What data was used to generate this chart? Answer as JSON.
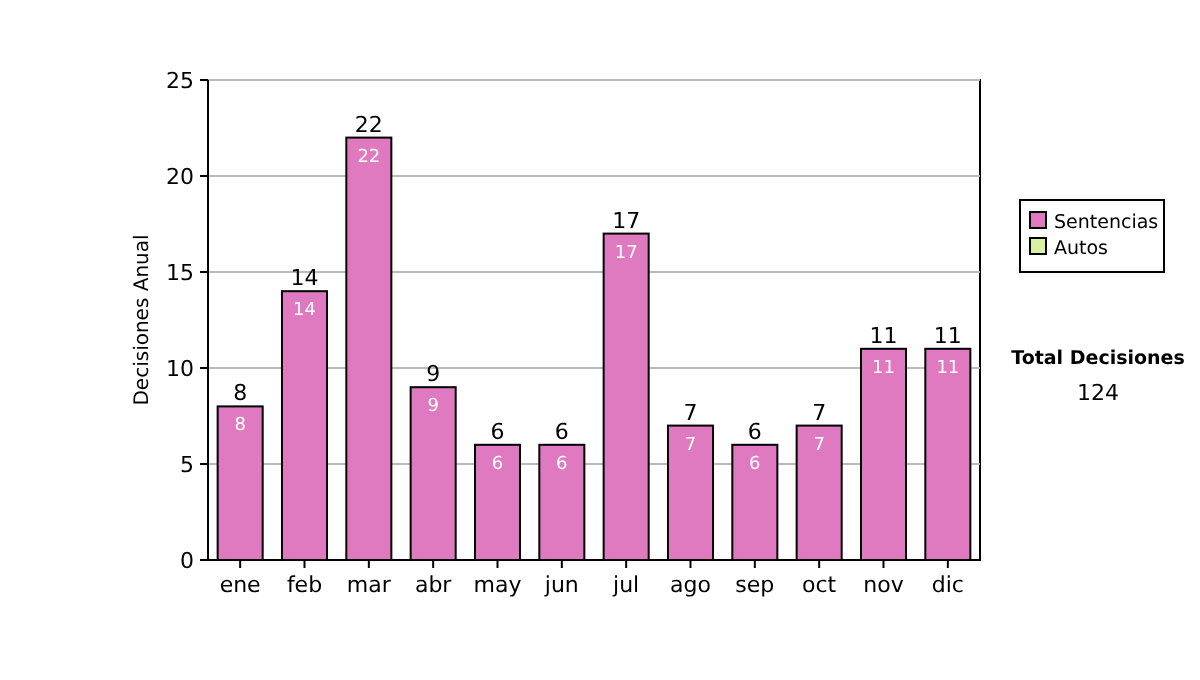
{
  "chart_data": {
    "type": "bar",
    "stacked": true,
    "ylabel": "Decisiones Anual",
    "categories": [
      "ene",
      "feb",
      "mar",
      "abr",
      "may",
      "jun",
      "jul",
      "ago",
      "sep",
      "oct",
      "nov",
      "dic"
    ],
    "series": [
      {
        "name": "Sentencias",
        "color": "#e07ac0",
        "values": [
          8,
          14,
          22,
          9,
          6,
          6,
          17,
          7,
          6,
          7,
          11,
          11
        ],
        "value_labels": [
          "8",
          "14",
          "22",
          "9",
          "6",
          "6",
          "17",
          "7",
          "6",
          "7",
          "11",
          "11"
        ]
      },
      {
        "name": "Autos",
        "color": "#d8f0a0",
        "values": [
          0,
          0,
          0,
          0,
          0,
          0,
          0,
          0,
          0,
          0,
          0,
          0
        ]
      }
    ],
    "totals": [
      "8",
      "14",
      "22",
      "9",
      "6",
      "6",
      "17",
      "7",
      "6",
      "7",
      "11",
      "11"
    ],
    "ylim": [
      0,
      25
    ],
    "yticks": [
      0,
      5,
      10,
      15,
      20,
      25
    ],
    "grid": "y",
    "legend": "right",
    "annotations": [
      "Total Decisiones",
      "124"
    ]
  }
}
